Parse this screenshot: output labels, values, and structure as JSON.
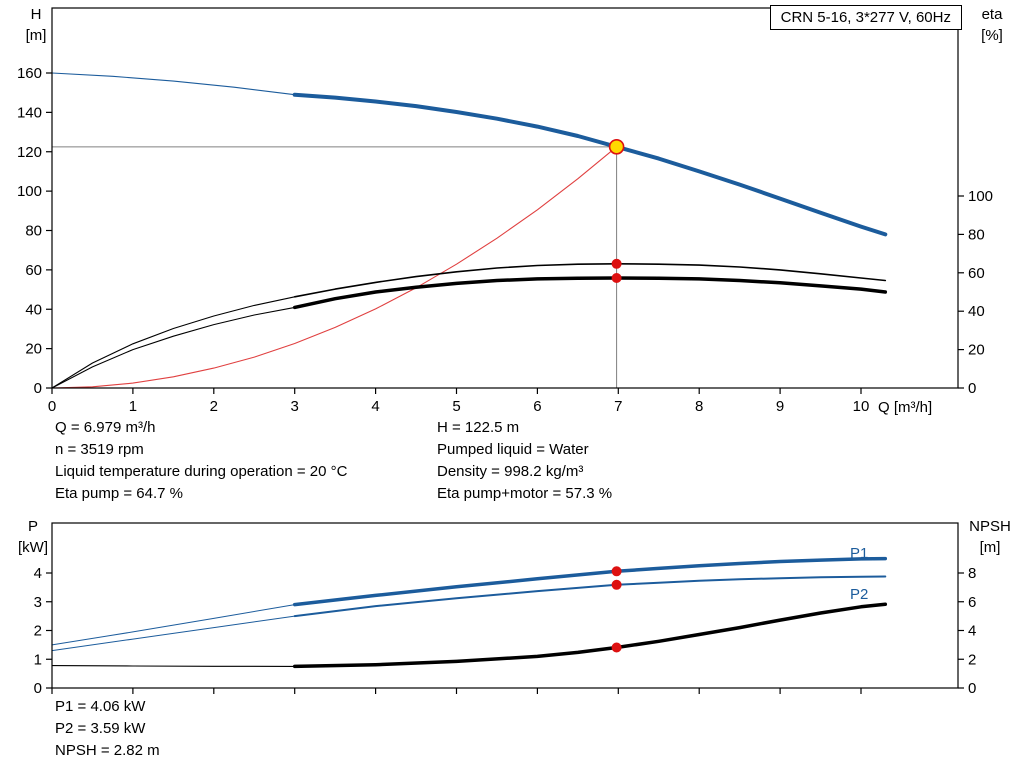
{
  "title_box": {
    "label": "CRN 5-16, 3*277 V, 60Hz"
  },
  "x_axis_label": "Q [m³/h]",
  "axis_corner_labels": {
    "top_left": [
      "H",
      "[m]"
    ],
    "top_right": [
      "eta",
      "[%]"
    ],
    "bottom_left": [
      "P",
      "[kW]"
    ],
    "bottom_right": [
      "NPSH",
      "[m]"
    ]
  },
  "series_labels": {
    "p1": "P1",
    "p2": "P2"
  },
  "info_top_left": [
    "Q = 6.979 m³/h",
    "n = 3519 rpm",
    "Liquid temperature during operation = 20 °C",
    "Eta pump = 64.7 %"
  ],
  "info_top_right": [
    "H = 122.5 m",
    "Pumped liquid = Water",
    "Density = 998.2 kg/m³",
    "Eta pump+motor = 57.3 %"
  ],
  "info_bottom": [
    "P1 = 4.06 kW",
    "P2 = 3.59 kW",
    "NPSH = 2.82 m"
  ],
  "colors": {
    "blue": "#1c5c9c",
    "red": "#dd1111",
    "duty_fill": "#ffd800",
    "gray": "#808080",
    "black": "#000000"
  },
  "chart_data": [
    {
      "type": "line",
      "name": "head-and-efficiency-curves",
      "title": "CRN 5-16, 3*277 V, 60Hz",
      "x_axis": {
        "label": "Q [m³/h]",
        "min": 0,
        "max": 11.2,
        "ticks": [
          0,
          1,
          2,
          3,
          4,
          5,
          6,
          7,
          8,
          9,
          10
        ]
      },
      "y_left": {
        "label": "H [m]",
        "min": 0,
        "ticks": [
          0,
          20,
          40,
          60,
          80,
          100,
          120,
          140,
          160
        ]
      },
      "y_right": {
        "label": "eta [%]",
        "min": 0,
        "ticks": [
          0,
          20,
          40,
          60,
          80,
          100
        ]
      },
      "duty_point": {
        "Q": 6.979,
        "H": 122.5,
        "eta_pump": 64.7,
        "eta_pump_motor": 57.3
      },
      "guides": [
        {
          "dir": "h",
          "axis": "left",
          "v": 122.5,
          "qFrom": 0,
          "qTo": 6.979
        },
        {
          "dir": "v",
          "axis": "left",
          "q": 6.979,
          "vFrom": 0,
          "vTo": 122.5
        }
      ],
      "series": [
        {
          "name": "system-curve",
          "axis": "left",
          "color": "#e04040",
          "width": 1.1,
          "points": [
            [
              0,
              0
            ],
            [
              0.5,
              0.6
            ],
            [
              1,
              2.5
            ],
            [
              1.5,
              5.7
            ],
            [
              2,
              10.1
            ],
            [
              2.5,
              15.7
            ],
            [
              3,
              22.6
            ],
            [
              3.5,
              30.8
            ],
            [
              4,
              40.2
            ],
            [
              4.5,
              50.9
            ],
            [
              5,
              62.9
            ],
            [
              5.5,
              76.1
            ],
            [
              6,
              90.5
            ],
            [
              6.5,
              106.3
            ],
            [
              6.979,
              122.5
            ]
          ]
        },
        {
          "name": "head-curve-thin",
          "axis": "left",
          "color": "#1c5c9c",
          "width": 1.1,
          "points": [
            [
              0,
              160
            ],
            [
              0.75,
              158.3
            ],
            [
              1.5,
              155.9
            ],
            [
              2.25,
              152.8
            ],
            [
              3,
              149
            ]
          ]
        },
        {
          "name": "head-curve",
          "axis": "left",
          "color": "#1c5c9c",
          "width": 4,
          "points": [
            [
              3,
              149
            ],
            [
              3.5,
              147.5
            ],
            [
              4,
              145.5
            ],
            [
              4.5,
              143.2
            ],
            [
              5,
              140.2
            ],
            [
              5.5,
              136.8
            ],
            [
              6,
              132.8
            ],
            [
              6.5,
              128
            ],
            [
              6.979,
              122.5
            ],
            [
              7.5,
              116.5
            ],
            [
              8,
              110
            ],
            [
              8.5,
              103.3
            ],
            [
              9,
              96.2
            ],
            [
              9.5,
              89
            ],
            [
              10,
              82
            ],
            [
              10.3,
              78
            ]
          ]
        },
        {
          "name": "eta-pump-thin",
          "axis": "right",
          "color": "#000000",
          "width": 1.1,
          "points": [
            [
              0,
              0
            ],
            [
              0.5,
              13
            ],
            [
              1,
              23
            ],
            [
              1.5,
              31
            ],
            [
              2,
              37.5
            ],
            [
              2.5,
              43
            ],
            [
              3,
              47.5
            ]
          ]
        },
        {
          "name": "eta-pump",
          "axis": "right",
          "color": "#000000",
          "width": 1.6,
          "points": [
            [
              3,
              47.5
            ],
            [
              3.5,
              51.5
            ],
            [
              4,
              55
            ],
            [
              4.5,
              58
            ],
            [
              5,
              60.5
            ],
            [
              5.5,
              62.5
            ],
            [
              6,
              63.8
            ],
            [
              6.5,
              64.5
            ],
            [
              6.979,
              64.7
            ],
            [
              7.5,
              64.5
            ],
            [
              8,
              64
            ],
            [
              8.5,
              63
            ],
            [
              9,
              61.5
            ],
            [
              9.5,
              59.5
            ],
            [
              10,
              57.3
            ],
            [
              10.3,
              56
            ]
          ]
        },
        {
          "name": "eta-pump-motor-thin",
          "axis": "right",
          "color": "#000000",
          "width": 1.1,
          "points": [
            [
              0,
              0
            ],
            [
              0.5,
              11
            ],
            [
              1,
              20
            ],
            [
              1.5,
              27
            ],
            [
              2,
              33
            ],
            [
              2.5,
              38
            ],
            [
              3,
              42
            ]
          ]
        },
        {
          "name": "eta-pump-motor",
          "axis": "right",
          "color": "#000000",
          "width": 3.5,
          "points": [
            [
              3,
              42
            ],
            [
              3.5,
              46.5
            ],
            [
              4,
              50
            ],
            [
              4.5,
              52.5
            ],
            [
              5,
              54.5
            ],
            [
              5.5,
              56
            ],
            [
              6,
              56.8
            ],
            [
              6.5,
              57.2
            ],
            [
              6.979,
              57.3
            ],
            [
              7.5,
              57.2
            ],
            [
              8,
              56.8
            ],
            [
              8.5,
              56
            ],
            [
              9,
              54.8
            ],
            [
              9.5,
              53.2
            ],
            [
              10,
              51.5
            ],
            [
              10.3,
              50
            ]
          ]
        }
      ],
      "markers": [
        {
          "name": "duty-point",
          "style": "duty",
          "axis": "left",
          "q": 6.979,
          "v": 122.5
        },
        {
          "name": "eta-pump-dot",
          "style": "dot",
          "axis": "right",
          "q": 6.979,
          "v": 64.7
        },
        {
          "name": "eta-pump-motor-dot",
          "style": "dot",
          "axis": "right",
          "q": 6.979,
          "v": 57.3
        }
      ]
    },
    {
      "type": "line",
      "name": "power-and-npsh-curves",
      "x_axis": {
        "label": "",
        "min": 0,
        "max": 11.2,
        "ticks": [
          0,
          1,
          2,
          3,
          4,
          5,
          6,
          7,
          8,
          9,
          10
        ]
      },
      "y_left": {
        "label": "P [kW]",
        "min": 0,
        "ticks": [
          0,
          1,
          2,
          3,
          4
        ]
      },
      "y_right": {
        "label": "NPSH [m]",
        "min": 0,
        "ticks": [
          0,
          2,
          4,
          6,
          8
        ]
      },
      "operating_values": {
        "P1_kW": 4.06,
        "P2_kW": 3.59,
        "NPSH_m": 2.82
      },
      "guides": [],
      "series": [
        {
          "name": "p1-thin",
          "axis": "left",
          "color": "#1c5c9c",
          "width": 1,
          "points": [
            [
              0,
              1.5
            ],
            [
              1,
              1.95
            ],
            [
              2,
              2.42
            ],
            [
              3,
              2.9
            ]
          ]
        },
        {
          "name": "p2-thin",
          "axis": "left",
          "color": "#1c5c9c",
          "width": 1,
          "points": [
            [
              0,
              1.3
            ],
            [
              1,
              1.7
            ],
            [
              2,
              2.1
            ],
            [
              3,
              2.5
            ]
          ]
        },
        {
          "name": "npsh-thin",
          "axis": "right",
          "color": "#000000",
          "width": 1.1,
          "points": [
            [
              0,
              1.56
            ],
            [
              1,
              1.53
            ],
            [
              2,
              1.51
            ],
            [
              3,
              1.5
            ]
          ]
        },
        {
          "name": "p1",
          "axis": "left",
          "color": "#1c5c9c",
          "width": 3.5,
          "points": [
            [
              3,
              2.9
            ],
            [
              4,
              3.22
            ],
            [
              5,
              3.52
            ],
            [
              6,
              3.8
            ],
            [
              6.979,
              4.06
            ],
            [
              7.5,
              4.16
            ],
            [
              8,
              4.25
            ],
            [
              8.5,
              4.33
            ],
            [
              9,
              4.4
            ],
            [
              9.5,
              4.45
            ],
            [
              10,
              4.49
            ],
            [
              10.3,
              4.5
            ]
          ]
        },
        {
          "name": "p2",
          "axis": "left",
          "color": "#1c5c9c",
          "width": 2,
          "points": [
            [
              3,
              2.5
            ],
            [
              4,
              2.85
            ],
            [
              5,
              3.12
            ],
            [
              6,
              3.37
            ],
            [
              6.979,
              3.59
            ],
            [
              7.5,
              3.66
            ],
            [
              8,
              3.73
            ],
            [
              8.5,
              3.78
            ],
            [
              9,
              3.82
            ],
            [
              9.5,
              3.85
            ],
            [
              10,
              3.87
            ],
            [
              10.3,
              3.88
            ]
          ]
        },
        {
          "name": "npsh",
          "axis": "right",
          "color": "#000000",
          "width": 3.5,
          "points": [
            [
              3,
              1.5
            ],
            [
              4,
              1.62
            ],
            [
              5,
              1.85
            ],
            [
              6,
              2.2
            ],
            [
              6.5,
              2.48
            ],
            [
              6.979,
              2.82
            ],
            [
              7.5,
              3.25
            ],
            [
              8,
              3.72
            ],
            [
              8.5,
              4.2
            ],
            [
              9,
              4.72
            ],
            [
              9.5,
              5.22
            ],
            [
              10,
              5.65
            ],
            [
              10.3,
              5.82
            ]
          ]
        }
      ],
      "markers": [
        {
          "name": "p1-dot",
          "style": "dot",
          "axis": "left",
          "q": 6.979,
          "v": 4.06
        },
        {
          "name": "p2-dot",
          "style": "dot",
          "axis": "left",
          "q": 6.979,
          "v": 3.59
        },
        {
          "name": "npsh-dot",
          "style": "dot",
          "axis": "right",
          "q": 6.979,
          "v": 2.82
        }
      ]
    }
  ]
}
